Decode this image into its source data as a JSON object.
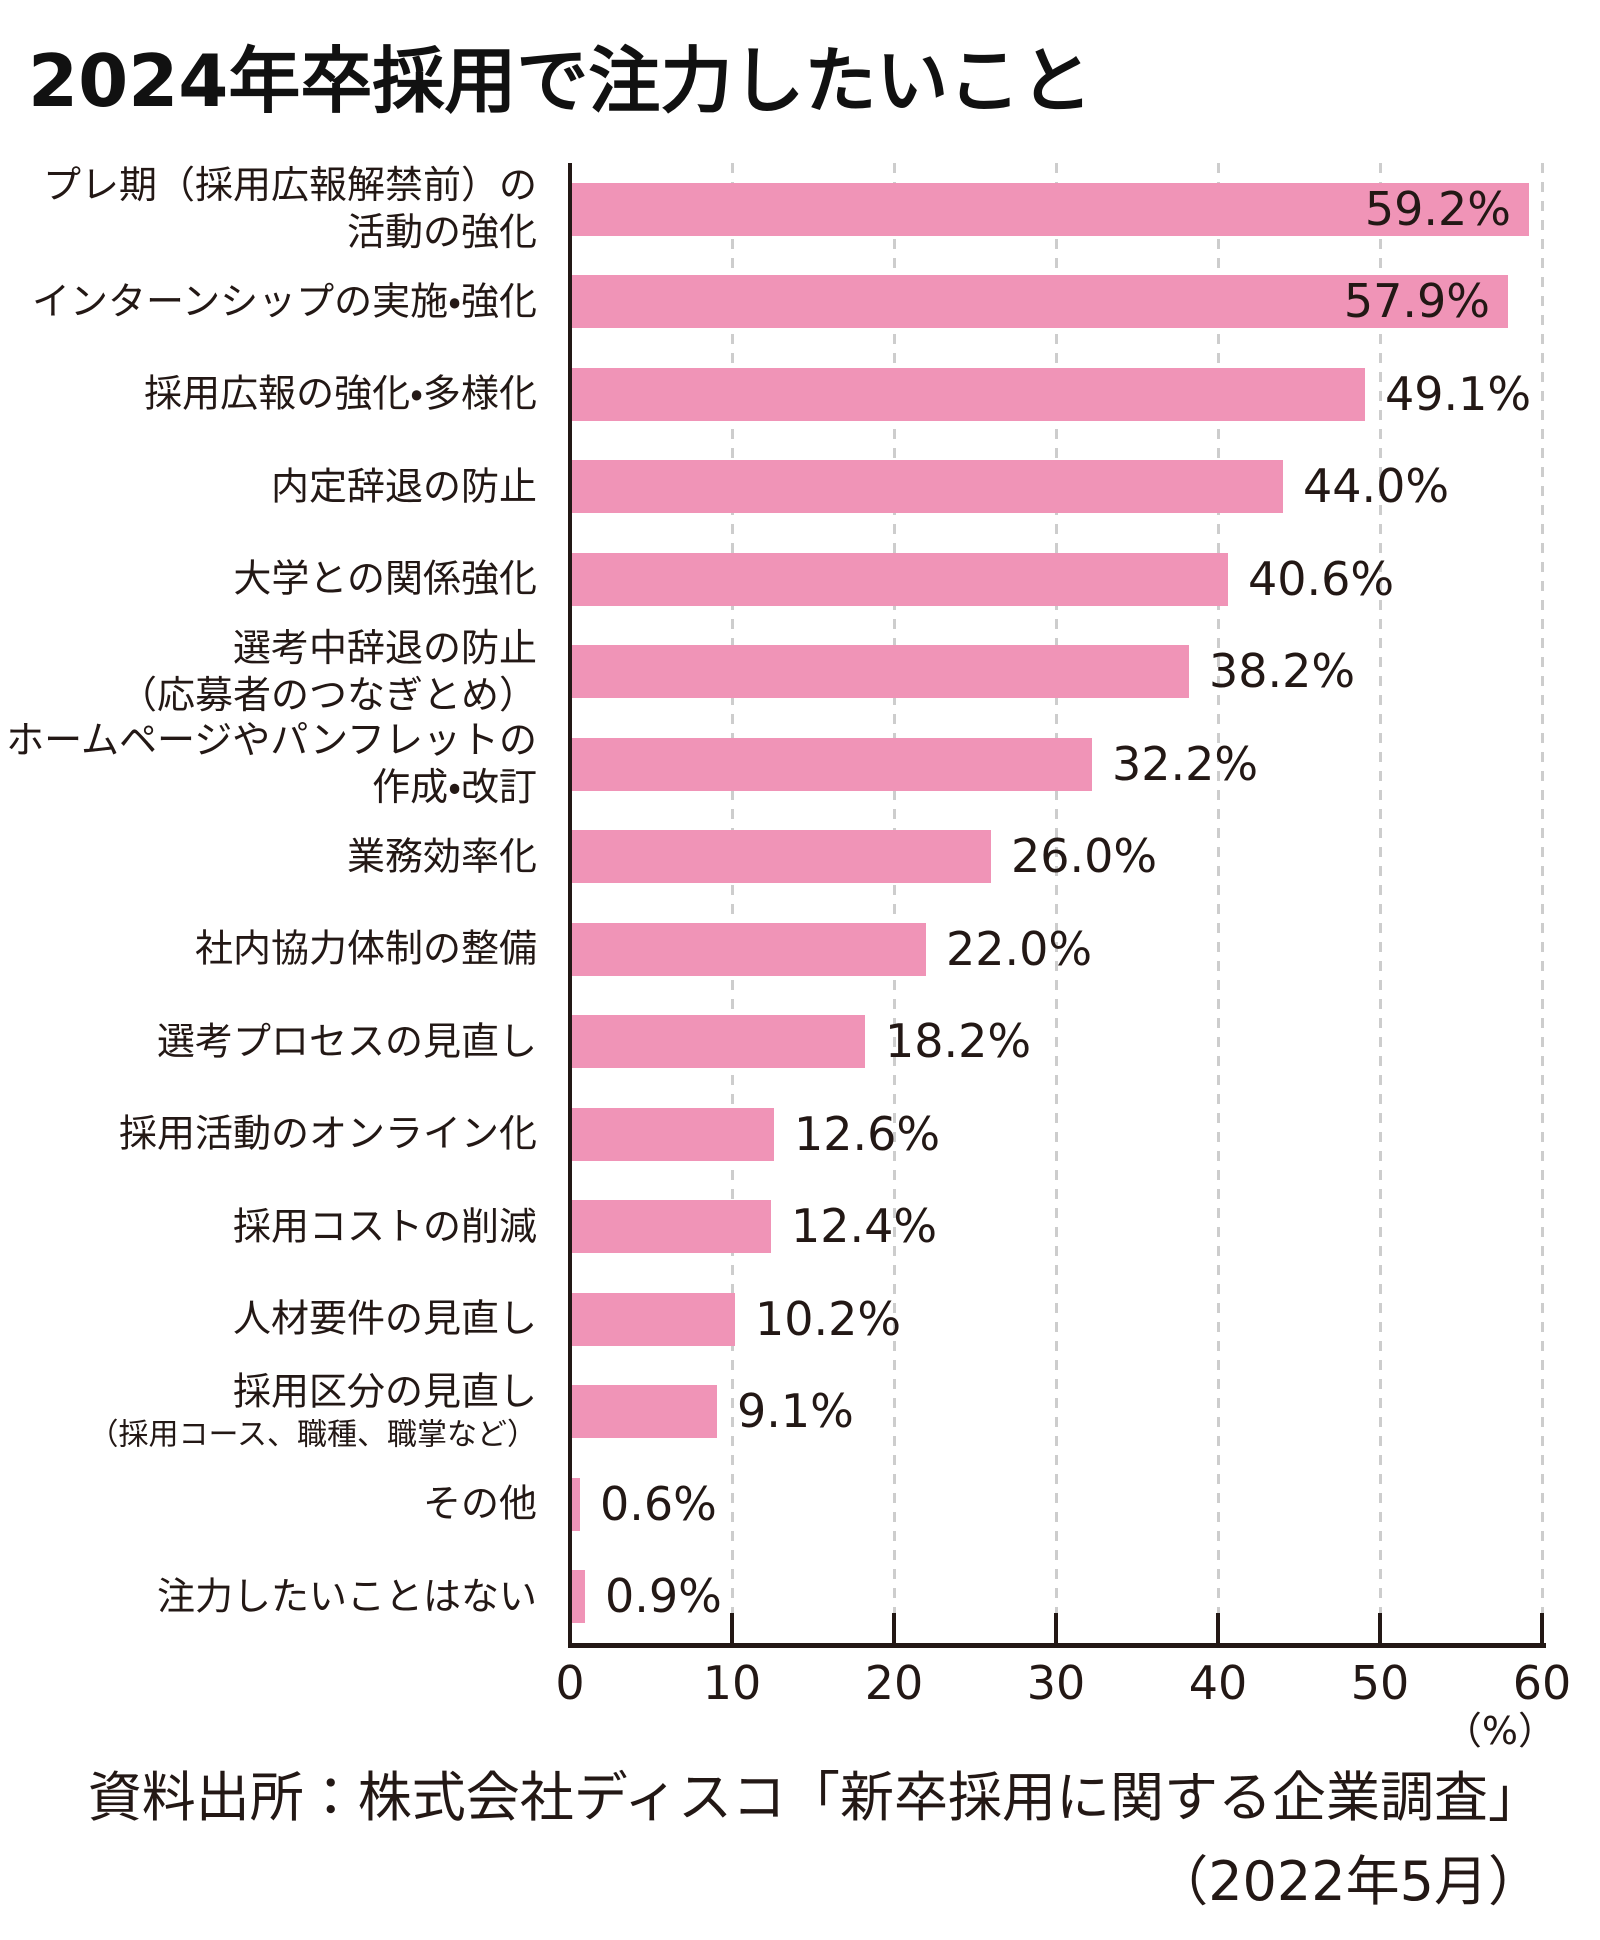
{
  "title": "2024年卒採用で注力したいこと",
  "chart_data": {
    "type": "bar",
    "orientation": "horizontal",
    "title": "2024年卒採用で注力したいこと",
    "categories": [
      {
        "lines": [
          "プレ期（採用広報解禁前）の",
          "活動の強化"
        ]
      },
      {
        "lines": [
          "インターンシップの実施・強化"
        ]
      },
      {
        "lines": [
          "採用広報の強化・多様化"
        ]
      },
      {
        "lines": [
          "内定辞退の防止"
        ]
      },
      {
        "lines": [
          "大学との関係強化"
        ]
      },
      {
        "lines": [
          "選考中辞退の防止",
          "（応募者のつなぎとめ）"
        ]
      },
      {
        "lines": [
          "ホームページやパンフレットの",
          "作成・改訂"
        ]
      },
      {
        "lines": [
          "業務効率化"
        ]
      },
      {
        "lines": [
          "社内協力体制の整備"
        ]
      },
      {
        "lines": [
          "選考プロセスの見直し"
        ]
      },
      {
        "lines": [
          "採用活動のオンライン化"
        ]
      },
      {
        "lines": [
          "採用コストの削減"
        ]
      },
      {
        "lines": [
          "人材要件の見直し"
        ]
      },
      {
        "lines": [
          "採用区分の見直し",
          "（採用コース、職種、職掌など）"
        ],
        "small_second_line": true
      },
      {
        "lines": [
          "その他"
        ]
      },
      {
        "lines": [
          "注力したいことはない"
        ]
      }
    ],
    "values": [
      59.2,
      57.9,
      49.1,
      44.0,
      40.6,
      38.2,
      32.2,
      26.0,
      22.0,
      18.2,
      12.6,
      12.4,
      10.2,
      9.1,
      0.6,
      0.9
    ],
    "value_labels": [
      "59.2%",
      "57.9%",
      "49.1%",
      "44.0%",
      "40.6%",
      "38.2%",
      "32.2%",
      "26.0%",
      "22.0%",
      "18.2%",
      "12.6%",
      "12.4%",
      "10.2%",
      "9.1%",
      "0.6%",
      "0.9%"
    ],
    "value_label_inside": [
      true,
      true,
      false,
      false,
      false,
      false,
      false,
      false,
      false,
      false,
      false,
      false,
      false,
      false,
      false,
      false
    ],
    "x_ticks": [
      "0",
      "10",
      "20",
      "30",
      "40",
      "50",
      "60"
    ],
    "xlim": [
      0,
      60
    ],
    "xlabel": "（%）",
    "grid": "dashed-vertical",
    "bar_color": "#F094B7",
    "gridline_color": "#cdcdcd",
    "text_color": "#231815"
  },
  "source": {
    "line1": "資料出所：株式会社ディスコ「新卒採用に関する企業調査」",
    "line2": "（2022年5月）"
  }
}
